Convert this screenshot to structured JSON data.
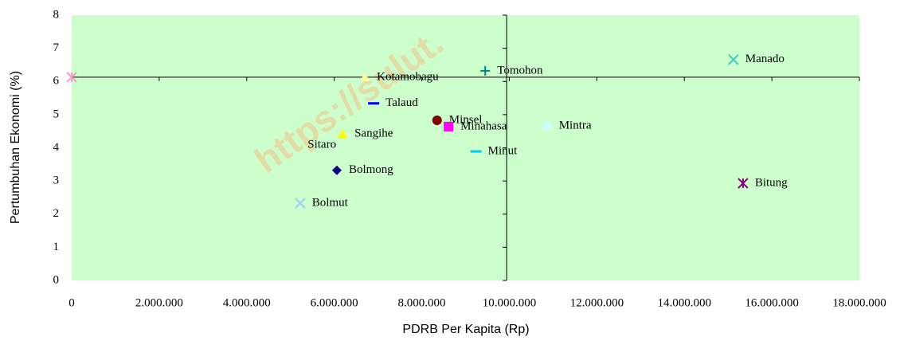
{
  "chart_data": {
    "type": "scatter",
    "xlabel": "PDRB Per Kapita (Rp)",
    "ylabel": "Pertumbuhan Ekonomi (%)",
    "watermark": "https://sulut.",
    "xlim": [
      0,
      18000000
    ],
    "ylim": [
      0,
      8
    ],
    "xticks": [
      0,
      {
        "value": 2000000,
        "label": "2.000.000"
      },
      {
        "value": 4000000,
        "label": "4.000.000"
      },
      {
        "value": 6000000,
        "label": "6.000.000"
      },
      {
        "value": 8000000,
        "label": "8.000.000"
      },
      {
        "value": 10000000,
        "label": "10.000.000"
      },
      {
        "value": 12000000,
        "label": "12.000.000"
      },
      {
        "value": 14000000,
        "label": "14.000.000"
      },
      {
        "value": 16000000,
        "label": "16.000.000"
      },
      {
        "value": 18000000,
        "label": "18.000.000"
      }
    ],
    "yticks": [
      0,
      1,
      2,
      3,
      4,
      5,
      6,
      7,
      8
    ],
    "reference_lines": {
      "x": 9940000,
      "y": 6.13
    },
    "background": "#ccffcc",
    "points": [
      {
        "label": null,
        "color": "#ff99cc",
        "marker": "asterisk",
        "x": 0,
        "y": 6.13
      },
      {
        "label": "Kotamobagu",
        "color": "#ffff99",
        "marker": "triangle",
        "x": 6700000,
        "y": 6.13
      },
      {
        "label": "Tomohon",
        "color": "#008080",
        "marker": "plus",
        "x": 9450000,
        "y": 6.32
      },
      {
        "label": "Manado",
        "color": "#33cccc",
        "marker": "x",
        "x": 15120000,
        "y": 6.66
      },
      {
        "label": "Talaud",
        "color": "#0000ff",
        "marker": "dash",
        "x": 6900000,
        "y": 5.34
      },
      {
        "label": "Minsel",
        "color": "#800000",
        "marker": "circle",
        "x": 8350000,
        "y": 4.83
      },
      {
        "label": "Minahasa",
        "color": "#ff00ff",
        "marker": "square",
        "x": 8610000,
        "y": 4.64
      },
      {
        "label": "Mintra",
        "color": "#ccffff",
        "marker": "circle",
        "x": 10860000,
        "y": 4.66
      },
      {
        "label": "Sangihe",
        "color": "#ffff00",
        "marker": "triangle",
        "x": 6190000,
        "y": 4.42
      },
      {
        "label": "Sitaro",
        "color": "#ffff00",
        "marker": "triangle",
        "x": 6190000,
        "y": 4.4
      },
      {
        "label": "Minut",
        "color": "#00ccff",
        "marker": "dash",
        "x": 9240000,
        "y": 3.89
      },
      {
        "label": "Bolmong",
        "color": "#000080",
        "marker": "diamond",
        "x": 6060000,
        "y": 3.32
      },
      {
        "label": "Bitung",
        "color": "#800080",
        "marker": "asterisk",
        "x": 15340000,
        "y": 2.93
      },
      {
        "label": "Bolmut",
        "color": "#99ccff",
        "marker": "x",
        "x": 5220000,
        "y": 2.33
      }
    ]
  }
}
